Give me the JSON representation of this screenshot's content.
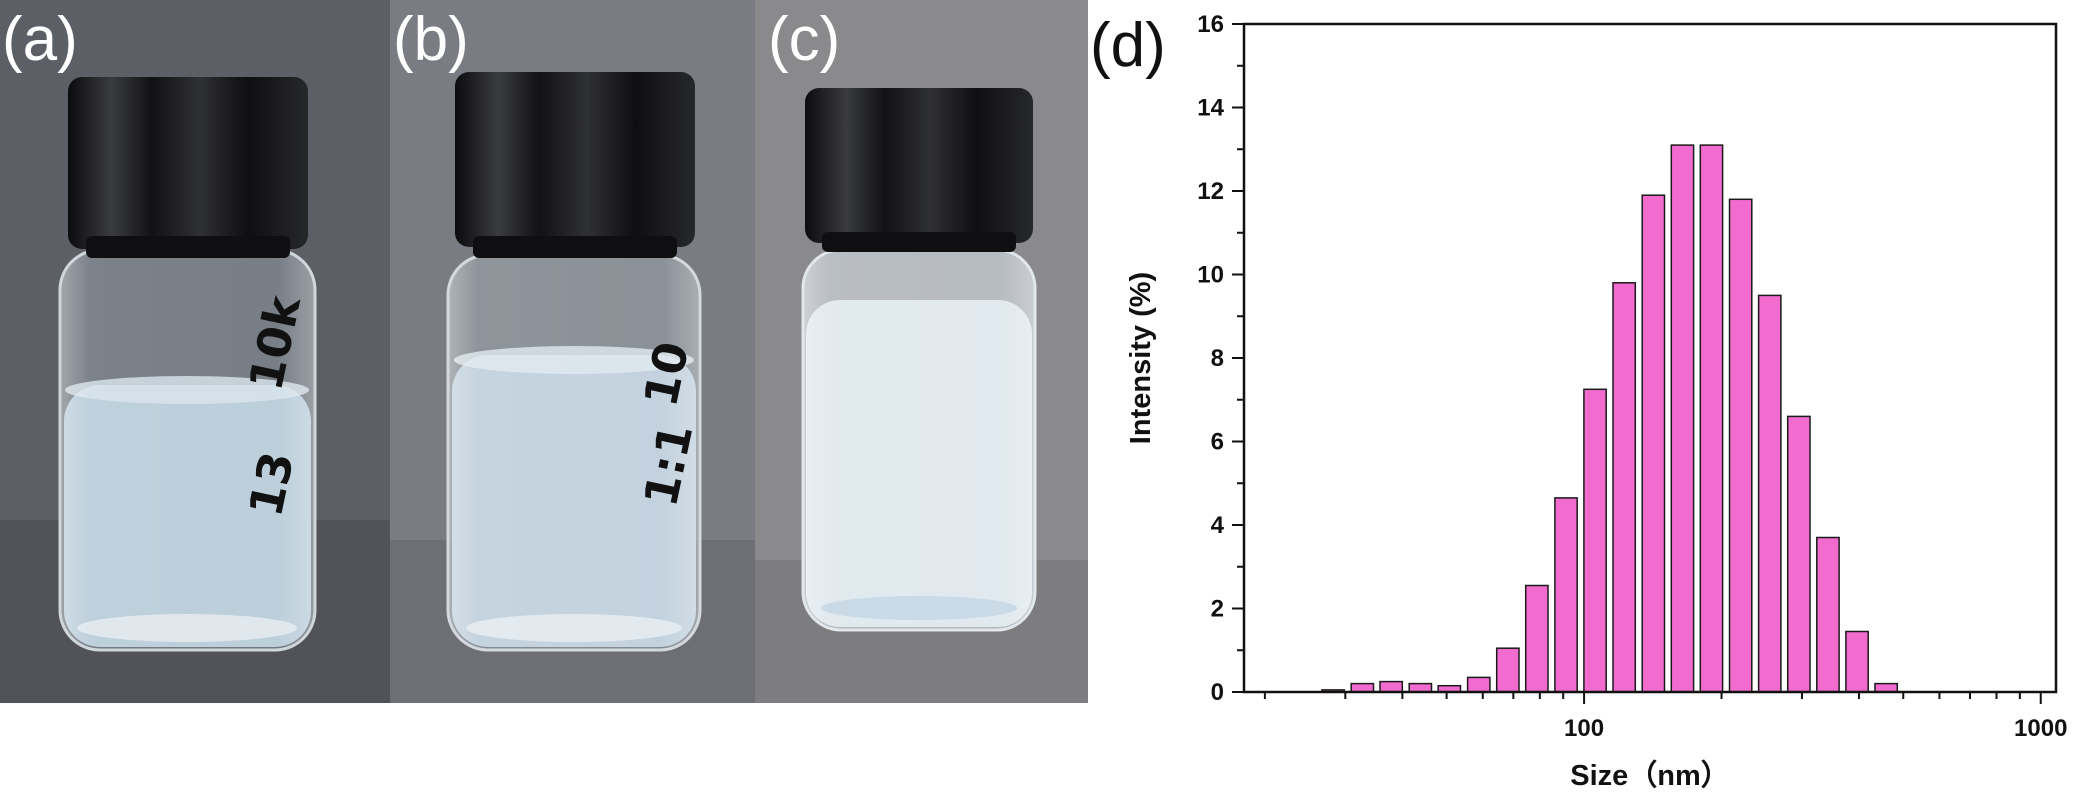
{
  "panels": {
    "a": {
      "label": "(a)",
      "vial_marking": [
        "10k",
        "13"
      ]
    },
    "b": {
      "label": "(b)",
      "vial_marking": [
        "10",
        "1:1"
      ]
    },
    "c": {
      "label": "(c)"
    },
    "d": {
      "label": "(d)"
    }
  },
  "colors": {
    "bar_fill": "#f26cd0",
    "bar_stroke": "#1a1a1a",
    "photo_bg_a": "#5d5f66",
    "photo_bg_b": "#7a7c83",
    "photo_bg_c": "#8a8a8c",
    "liquid_a": "#b8ccd8",
    "liquid_b": "#c0d0dc",
    "liquid_c": "#dfe8ee",
    "cap": "#1b1b1d"
  },
  "chart_data": {
    "type": "bar",
    "xlabel": "Size（nm）",
    "ylabel": "Intensity (%)",
    "x_scale": "log",
    "xlim": [
      18,
      1080
    ],
    "ylim": [
      0,
      16
    ],
    "x_ticks": [
      {
        "value": 100,
        "label": "100"
      },
      {
        "value": 1000,
        "label": "1000"
      }
    ],
    "y_ticks": [
      {
        "value": 0,
        "label": "0"
      },
      {
        "value": 2,
        "label": "2"
      },
      {
        "value": 4,
        "label": "4"
      },
      {
        "value": 6,
        "label": "6"
      },
      {
        "value": 8,
        "label": "8"
      },
      {
        "value": 10,
        "label": "10"
      },
      {
        "value": 12,
        "label": "12"
      },
      {
        "value": 14,
        "label": "14"
      },
      {
        "value": 16,
        "label": "16"
      }
    ],
    "x": [
      28.2,
      32.7,
      37.8,
      43.8,
      50.7,
      58.8,
      68.1,
      78.8,
      91.3,
      105.7,
      122.4,
      141.8,
      164.2,
      190.1,
      220.2,
      255.0,
      295.3,
      342.0,
      396.1,
      458.7
    ],
    "values": [
      0.05,
      0.2,
      0.25,
      0.2,
      0.15,
      0.35,
      1.05,
      2.55,
      4.65,
      7.25,
      9.8,
      11.9,
      13.1,
      13.1,
      11.8,
      9.5,
      6.6,
      3.7,
      1.45,
      0.2
    ],
    "legend": "none",
    "grid": false
  }
}
